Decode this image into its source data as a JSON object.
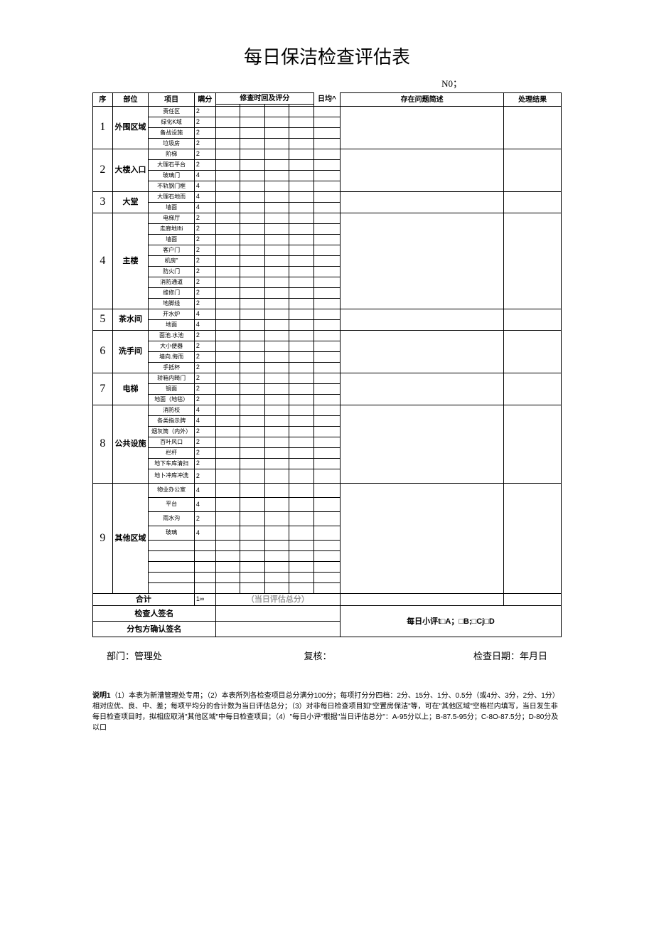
{
  "title": "每日保洁检查评估表",
  "no_label": "N0；",
  "headers": {
    "seq": "序",
    "location": "部位",
    "item": "项目",
    "full_score": "瞒分",
    "time_eval": "修查时回及评分",
    "day_avg": "日均^",
    "issues": "存在问题简述",
    "result": "处理结果"
  },
  "sections": [
    {
      "seq": "1",
      "location": "外围区域",
      "items": [
        {
          "name": "责任区",
          "score": "2"
        },
        {
          "name": "绿化K域",
          "score": "2"
        },
        {
          "name": "备战设施",
          "score": "2"
        },
        {
          "name": "垃圾房",
          "score": "2"
        }
      ]
    },
    {
      "seq": "2",
      "location": "大楼入口",
      "items": [
        {
          "name": "阶梯",
          "score": "2"
        },
        {
          "name": "大理石平台",
          "score": "2"
        },
        {
          "name": "玻璃门",
          "score": "4"
        },
        {
          "name": "不轨钢门框",
          "score": "4"
        }
      ]
    },
    {
      "seq": "3",
      "location": "大堂",
      "items": [
        {
          "name": "大理石地而",
          "score": "4"
        },
        {
          "name": "墙面",
          "score": "4"
        }
      ]
    },
    {
      "seq": "4",
      "location": "主楼",
      "items": [
        {
          "name": "电梯厅",
          "score": "2"
        },
        {
          "name": "走廊地Ifti",
          "score": "2"
        },
        {
          "name": "墙面",
          "score": "2"
        },
        {
          "name": "客户门",
          "score": "2"
        },
        {
          "name": "机房\"",
          "score": "2"
        },
        {
          "name": "防火门",
          "score": "2"
        },
        {
          "name": "消防通道",
          "score": "2"
        },
        {
          "name": "维修门",
          "score": "2"
        },
        {
          "name": "地脚线",
          "score": "2"
        }
      ]
    },
    {
      "seq": "5",
      "location": "茶水间",
      "items": [
        {
          "name": "开水炉",
          "score": "4"
        },
        {
          "name": "地面",
          "score": "4"
        }
      ]
    },
    {
      "seq": "6",
      "location": "洗手间",
      "items": [
        {
          "name": "面池.水池",
          "score": "2"
        },
        {
          "name": "大小便器",
          "score": "2"
        },
        {
          "name": "墙向.侮而",
          "score": "2"
        },
        {
          "name": "手抵杯",
          "score": "2"
        }
      ]
    },
    {
      "seq": "7",
      "location": "电梯",
      "items": [
        {
          "name": "轿箱内畸门",
          "score": "2"
        },
        {
          "name": "镜面",
          "score": "2"
        },
        {
          "name": "地面（地毯）",
          "score": "2"
        }
      ]
    },
    {
      "seq": "8",
      "location": "公共设施",
      "items": [
        {
          "name": "消防校",
          "score": "4"
        },
        {
          "name": "各类指示牌",
          "score": "4"
        },
        {
          "name": "烟灰筒（内外）",
          "score": "2"
        },
        {
          "name": "百叶风口",
          "score": "2"
        },
        {
          "name": "栏杆",
          "score": "2"
        },
        {
          "name": "地下车库清扫",
          "score": "2"
        },
        {
          "name": "地卜冲库冲洗",
          "score": "2"
        }
      ]
    },
    {
      "seq": "9",
      "location": "其他区域",
      "items": [
        {
          "name": "物业办公室",
          "score": "4"
        },
        {
          "name": "平台",
          "score": "4"
        },
        {
          "name": "雨水沟",
          "score": "2"
        },
        {
          "name": "玻璃",
          "score": "4"
        },
        {
          "name": "",
          "score": ""
        },
        {
          "name": "",
          "score": ""
        },
        {
          "name": "",
          "score": ""
        },
        {
          "name": "",
          "score": ""
        },
        {
          "name": "",
          "score": ""
        }
      ]
    }
  ],
  "total_label": "合计",
  "total_score": "1∞",
  "total_note": "（当日评估总分）",
  "sign1": "检查人签名",
  "sign2": "分包方确认签名",
  "daily_eval": "每日小评t□A；□B;□Cj□D",
  "footer": {
    "dept": "部门：管理处",
    "review": "复核：",
    "date": "检查日期：年月日"
  },
  "notes_label": "说明1",
  "notes_body": "（1）本表为新漕管理处专用；（2）本表所列各检查项目总分满分100分；每项打分分四档：2分、15分、1分、0.5分（或4分、3分，2分、1分）相对应优、良、中、差；每项平均分的合计数为当日评估总分；（3）对非每日检查项目如\"空置房保洁\"等，可在\"其他区域\"空格栏内填写，当日发生非每日检查项目时，拟相应取消\"其他区域\"中每日检查项目；（4）\"每日小评\"根据\"当日评估总分\"：A-95分以上；B-87.5-95分；C-8O-87.5分；D-80分及以口"
}
